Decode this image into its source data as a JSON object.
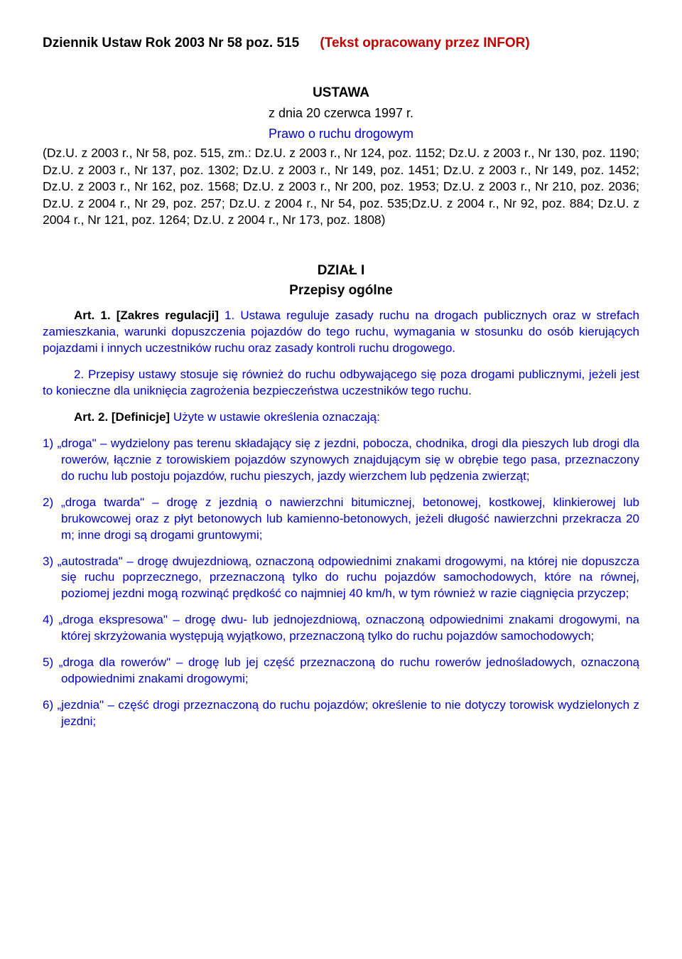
{
  "header": {
    "left": "Dziennik Ustaw Rok 2003 Nr 58 poz. 515",
    "right": "(Tekst opracowany przez INFOR)"
  },
  "title": "USTAWA",
  "subtitle": "z dnia 20 czerwca 1997 r.",
  "actTitle": "Prawo o ruchu drogowym",
  "refs": "(Dz.U. z 2003 r., Nr 58, poz. 515, zm.: Dz.U. z 2003 r., Nr 124, poz. 1152; Dz.U. z 2003 r., Nr 130, poz. 1190; Dz.U. z 2003 r., Nr 137, poz. 1302; Dz.U. z 2003 r., Nr 149, poz. 1451; Dz.U. z 2003 r., Nr 149, poz. 1452; Dz.U. z 2003 r., Nr 162, poz. 1568; Dz.U. z 2003 r., Nr 200, poz. 1953; Dz.U. z 2003 r., Nr 210, poz. 2036; Dz.U. z 2004 r., Nr 29, poz. 257; Dz.U. z 2004 r., Nr 54, poz. 535;Dz.U. z 2004 r., Nr 92, poz. 884; Dz.U. z 2004 r., Nr 121, poz. 1264; Dz.U. z 2004 r., Nr 173, poz. 1808)",
  "section": {
    "title": "DZIAŁ I",
    "sub": "Przepisy ogólne"
  },
  "art1": {
    "label": "Art. 1. [Zakres regulacji] ",
    "p1a": "1. ",
    "p1b": "Ustawa reguluje zasady ruchu na drogach publicznych oraz w strefach zamieszkania, warunki dopuszczenia pojazdów do tego ruchu, wymagania w stosunku do osób kierujących pojazdami i innych uczestników ruchu oraz zasady kontroli ruchu drogowego.",
    "p2": "2. Przepisy ustawy stosuje się również do ruchu odbywającego się poza drogami publicznymi, jeżeli jest to konieczne dla uniknięcia zagrożenia bezpieczeństwa uczestników tego ruchu."
  },
  "art2": {
    "label": "Art. 2. [Definicje] ",
    "intro": "Użyte w ustawie określenia oznaczają:",
    "items": [
      "1) „droga\" – wydzielony pas terenu składający się z jezdni, pobocza, chodnika, drogi dla pieszych lub drogi dla rowerów, łącznie z torowiskiem pojazdów szynowych znajdującym się w obrębie tego pasa, przeznaczony do ruchu lub postoju pojazdów, ruchu pieszych, jazdy wierzchem lub pędzenia zwierząt;",
      "2) „droga twarda\" – drogę z jezdnią o nawierzchni bitumicznej, betonowej, kostkowej, klinkierowej lub brukowcowej oraz z płyt betonowych lub kamienno-betonowych, jeżeli długość nawierzchni przekracza 20 m; inne drogi są drogami gruntowymi;",
      "3) „autostrada\" – drogę dwujezdniową, oznaczoną odpowiednimi znakami drogowymi, na której nie dopuszcza się ruchu poprzecznego, przeznaczoną tylko do ruchu pojazdów samochodowych, które na równej, poziomej jezdni mogą rozwinąć prędkość co najmniej 40 km/h, w tym również w razie ciągnięcia przyczep;",
      "4) „droga ekspresowa\" – drogę dwu- lub jednojezdniową, oznaczoną odpowiednimi znakami drogowymi, na której skrzyżowania występują wyjątkowo, przeznaczoną tylko do ruchu pojazdów samochodowych;",
      "5) „droga dla rowerów\" – drogę lub jej część przeznaczoną do ruchu rowerów jednośladowych, oznaczoną odpowiednimi znakami drogowymi;",
      "6) „jezdnia\" – część drogi przeznaczoną do ruchu pojazdów; określenie to nie dotyczy torowisk wydzielonych z jezdni;"
    ]
  }
}
